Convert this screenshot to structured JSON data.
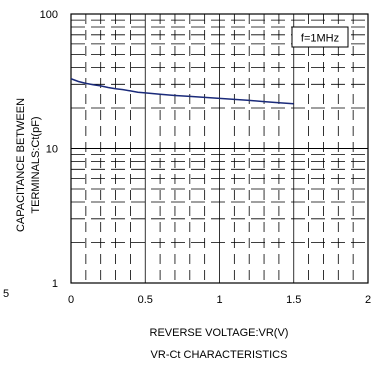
{
  "chart_data": {
    "type": "line",
    "title": "VR-Ct CHARACTERISTICS",
    "xlabel": "REVERSE VOLTAGE:VR(V)",
    "ylabel_lines": [
      "CAPACITANCE BETWEEN",
      "TERMINALS:Ct(pF)"
    ],
    "annotation": "f=1MHz",
    "xlim": [
      0,
      2
    ],
    "ylim": [
      1,
      100
    ],
    "y_scale": "log",
    "grid": true,
    "x_ticks": [
      {
        "value": 0,
        "label": "0"
      },
      {
        "value": 0.5,
        "label": "0.5"
      },
      {
        "value": 1,
        "label": "1"
      },
      {
        "value": 1.5,
        "label": "1.5"
      },
      {
        "value": 2,
        "label": "2"
      }
    ],
    "y_ticks": [
      {
        "value": 1,
        "label": "1"
      },
      {
        "value": 10,
        "label": "10"
      },
      {
        "value": 100,
        "label": "100"
      }
    ],
    "stray_left_label": "5",
    "series": [
      {
        "color": "#1a2a7a",
        "x": [
          0,
          0.05,
          0.1,
          0.15,
          0.2,
          0.25,
          0.3,
          0.35,
          0.4,
          0.45,
          0.5,
          0.6,
          0.7,
          0.8,
          0.9,
          1.0,
          1.1,
          1.2,
          1.3,
          1.4,
          1.5
        ],
        "y": [
          33,
          31.5,
          30.5,
          29.8,
          29.2,
          28.4,
          27.8,
          27.4,
          26.8,
          26.2,
          25.9,
          25.3,
          24.8,
          24.4,
          24.0,
          23.6,
          23.2,
          22.8,
          22.3,
          21.9,
          21.5
        ]
      }
    ]
  }
}
